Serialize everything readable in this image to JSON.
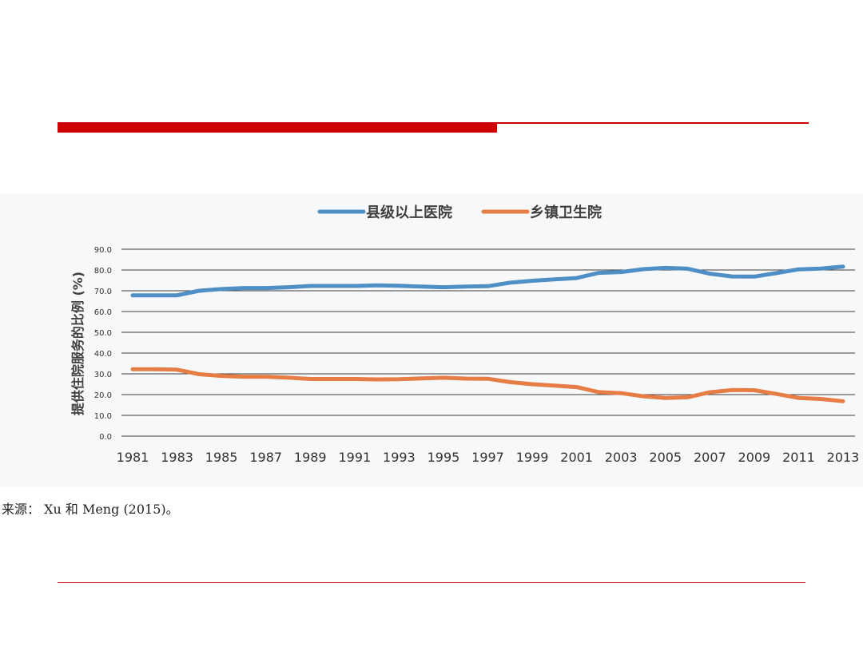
{
  "chart_data": {
    "type": "line",
    "title": "",
    "xlabel": "",
    "ylabel": "提供住院服务的比例 (%)",
    "ylim": [
      0,
      90
    ],
    "yticks": [
      "0.0",
      "10.0",
      "20.0",
      "30.0",
      "40.0",
      "50.0",
      "60.0",
      "70.0",
      "80.0",
      "90.0"
    ],
    "xticks": [
      "1981",
      "1983",
      "1985",
      "1987",
      "1989",
      "1991",
      "1993",
      "1995",
      "1997",
      "1999",
      "2001",
      "2003",
      "2005",
      "2007",
      "2009",
      "2011",
      "2013"
    ],
    "x": [
      1981,
      1982,
      1983,
      1984,
      1985,
      1986,
      1987,
      1988,
      1989,
      1990,
      1991,
      1992,
      1993,
      1994,
      1995,
      1996,
      1997,
      1998,
      1999,
      2000,
      2001,
      2002,
      2003,
      2004,
      2005,
      2006,
      2007,
      2008,
      2009,
      2010,
      2011,
      2012,
      2013
    ],
    "grid": true,
    "legend_position": "top",
    "series": [
      {
        "name": "县级以上医院",
        "color": "#4e8fc6",
        "values": [
          67.8,
          67.8,
          67.8,
          70.0,
          70.8,
          71.3,
          71.3,
          71.7,
          72.3,
          72.3,
          72.3,
          72.6,
          72.4,
          72.0,
          71.7,
          72.0,
          72.2,
          73.9,
          74.8,
          75.5,
          76.1,
          78.6,
          79.0,
          80.4,
          81.0,
          80.6,
          78.2,
          76.9,
          76.8,
          78.5,
          80.3,
          80.7,
          81.6
        ]
      },
      {
        "name": "乡镇卫生院",
        "color": "#e67d44",
        "values": [
          32.2,
          32.2,
          32.0,
          29.8,
          29.0,
          28.6,
          28.6,
          28.2,
          27.5,
          27.5,
          27.5,
          27.3,
          27.4,
          27.8,
          28.1,
          27.7,
          27.6,
          26.0,
          25.0,
          24.3,
          23.6,
          21.2,
          20.7,
          19.2,
          18.4,
          18.7,
          21.1,
          22.2,
          22.1,
          20.3,
          18.4,
          17.9,
          16.8
        ]
      }
    ]
  },
  "source_note": "来源： Xu 和 Meng (2015)。"
}
